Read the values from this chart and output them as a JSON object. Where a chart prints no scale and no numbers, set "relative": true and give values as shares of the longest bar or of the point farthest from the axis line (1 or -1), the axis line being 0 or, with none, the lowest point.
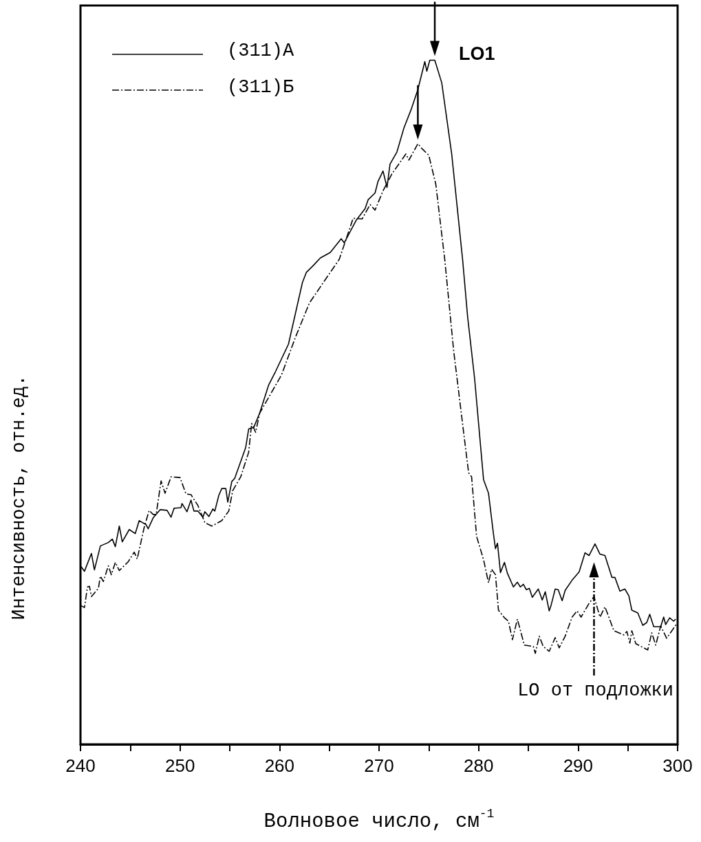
{
  "chart_data": {
    "type": "line",
    "relative": true,
    "xlabel": "Волновое число, см$^{-1}$",
    "ylabel": "Интенсивность, отн.ед.",
    "xlim": [
      240,
      300
    ],
    "xticks": [
      240,
      {
        "value": 245,
        "label": null
      },
      250,
      {
        "value": 255,
        "label": null
      },
      260,
      {
        "value": 265,
        "label": null
      },
      270,
      {
        "value": 275,
        "label": null
      },
      280,
      {
        "value": 285,
        "label": null
      },
      290,
      {
        "value": 295,
        "label": null
      },
      300
    ],
    "legend": "top left",
    "grid": false,
    "marker": "none",
    "annotations": [
      {
        "text": "LO1",
        "x": 275.6,
        "y": 1.0
      },
      "LO от подложки"
    ],
    "series": [
      {
        "name": "(311)A",
        "color": "#000000",
        "line_style": "solid",
        "x": [
          240.0,
          240.4,
          241.1,
          241.4,
          242.0,
          242.8,
          243.2,
          243.5,
          243.9,
          244.2,
          244.9,
          245.5,
          245.9,
          246.6,
          246.8,
          247.3,
          248.0,
          248.7,
          249.1,
          249.4,
          250.1,
          250.2,
          250.7,
          251.1,
          251.4,
          251.8,
          252.3,
          252.5,
          252.9,
          253.3,
          253.5,
          253.9,
          254.2,
          254.6,
          254.8,
          255.2,
          255.5,
          256.6,
          256.9,
          257.4,
          258.0,
          258.9,
          259.6,
          260.9,
          261.6,
          262.3,
          262.7,
          263.4,
          264.1,
          265.1,
          266.2,
          266.5,
          267.7,
          268.6,
          268.9,
          269.6,
          269.9,
          270.4,
          270.8,
          271.1,
          271.8,
          272.5,
          273.2,
          273.9,
          274.6,
          274.8,
          275.1,
          275.6,
          276.3,
          277.3,
          278.4,
          278.9,
          279.6,
          280.5,
          281.0,
          281.5,
          281.7,
          281.9,
          282.2,
          282.6,
          282.9,
          283.5,
          283.9,
          284.2,
          284.5,
          284.8,
          285.1,
          285.4,
          286.0,
          286.4,
          286.7,
          287.1,
          287.3,
          287.7,
          288.0,
          288.4,
          288.7,
          289.4,
          290.1,
          290.7,
          291.1,
          291.7,
          292.2,
          292.7,
          293.4,
          293.7,
          294.2,
          294.7,
          295.1,
          295.4,
          296.0,
          296.5,
          296.9,
          297.2,
          297.6,
          298.3,
          298.6,
          298.8,
          299.2,
          299.6,
          299.8
        ],
        "values": [
          0.261,
          0.253,
          0.279,
          0.255,
          0.29,
          0.295,
          0.3,
          0.289,
          0.319,
          0.296,
          0.314,
          0.308,
          0.327,
          0.321,
          0.315,
          0.331,
          0.343,
          0.342,
          0.332,
          0.345,
          0.346,
          0.352,
          0.34,
          0.357,
          0.341,
          0.341,
          0.332,
          0.34,
          0.333,
          0.344,
          0.341,
          0.364,
          0.374,
          0.374,
          0.354,
          0.384,
          0.389,
          0.434,
          0.461,
          0.463,
          0.484,
          0.525,
          0.545,
          0.585,
          0.63,
          0.675,
          0.69,
          0.7,
          0.711,
          0.719,
          0.739,
          0.733,
          0.766,
          0.783,
          0.796,
          0.806,
          0.823,
          0.838,
          0.814,
          0.848,
          0.866,
          0.901,
          0.927,
          0.957,
          0.998,
          0.984,
          1.0,
          1.0,
          0.967,
          0.863,
          0.708,
          0.625,
          0.535,
          0.387,
          0.367,
          0.307,
          0.286,
          0.294,
          0.251,
          0.266,
          0.25,
          0.23,
          0.237,
          0.23,
          0.234,
          0.226,
          0.228,
          0.215,
          0.227,
          0.211,
          0.223,
          0.195,
          0.204,
          0.227,
          0.226,
          0.21,
          0.225,
          0.24,
          0.252,
          0.28,
          0.276,
          0.293,
          0.278,
          0.276,
          0.244,
          0.244,
          0.224,
          0.227,
          0.217,
          0.196,
          0.192,
          0.174,
          0.178,
          0.19,
          0.172,
          0.172,
          0.186,
          0.175,
          0.185,
          0.18,
          0.183
        ]
      },
      {
        "name": "(311)Б",
        "color": "#000000",
        "line_style": "dashdot",
        "x": [
          240.0,
          240.4,
          240.7,
          240.9,
          241.1,
          241.8,
          242.0,
          242.3,
          242.8,
          243.1,
          243.5,
          243.9,
          244.8,
          245.4,
          245.7,
          246.4,
          246.9,
          247.3,
          247.6,
          248.1,
          248.5,
          249.1,
          250.0,
          250.6,
          251.1,
          251.8,
          252.5,
          253.2,
          254.2,
          254.9,
          255.3,
          256.1,
          256.9,
          257.2,
          257.6,
          258.0,
          260.2,
          261.6,
          263.0,
          264.4,
          266.0,
          267.4,
          268.3,
          269.1,
          269.6,
          270.4,
          271.3,
          272.7,
          273.0,
          273.9,
          274.3,
          275.0,
          275.7,
          276.6,
          277.5,
          278.6,
          279.0,
          279.3,
          279.8,
          280.5,
          281.0,
          281.3,
          281.7,
          282.0,
          282.6,
          283.0,
          283.4,
          283.9,
          284.6,
          285.5,
          285.7,
          286.1,
          286.5,
          287.1,
          287.7,
          288.1,
          288.7,
          289.4,
          289.9,
          290.3,
          291.1,
          291.6,
          292.2,
          292.7,
          293.6,
          294.6,
          294.9,
          295.2,
          295.4,
          295.8,
          297.0,
          297.4,
          297.8,
          298.3,
          298.9,
          300.0
        ],
        "values": [
          0.203,
          0.2,
          0.23,
          0.231,
          0.216,
          0.228,
          0.246,
          0.238,
          0.261,
          0.248,
          0.266,
          0.254,
          0.267,
          0.281,
          0.271,
          0.317,
          0.342,
          0.336,
          0.336,
          0.385,
          0.367,
          0.391,
          0.39,
          0.366,
          0.365,
          0.349,
          0.324,
          0.319,
          0.327,
          0.341,
          0.371,
          0.391,
          0.427,
          0.469,
          0.456,
          0.484,
          0.54,
          0.595,
          0.645,
          0.675,
          0.709,
          0.769,
          0.768,
          0.789,
          0.781,
          0.809,
          0.834,
          0.863,
          0.854,
          0.878,
          0.871,
          0.861,
          0.819,
          0.709,
          0.575,
          0.444,
          0.397,
          0.391,
          0.304,
          0.27,
          0.236,
          0.256,
          0.248,
          0.196,
          0.185,
          0.18,
          0.153,
          0.183,
          0.145,
          0.143,
          0.133,
          0.158,
          0.143,
          0.136,
          0.156,
          0.141,
          0.158,
          0.186,
          0.195,
          0.186,
          0.206,
          0.216,
          0.186,
          0.201,
          0.166,
          0.16,
          0.165,
          0.148,
          0.166,
          0.147,
          0.138,
          0.163,
          0.145,
          0.173,
          0.155,
          0.178
        ]
      }
    ]
  }
}
